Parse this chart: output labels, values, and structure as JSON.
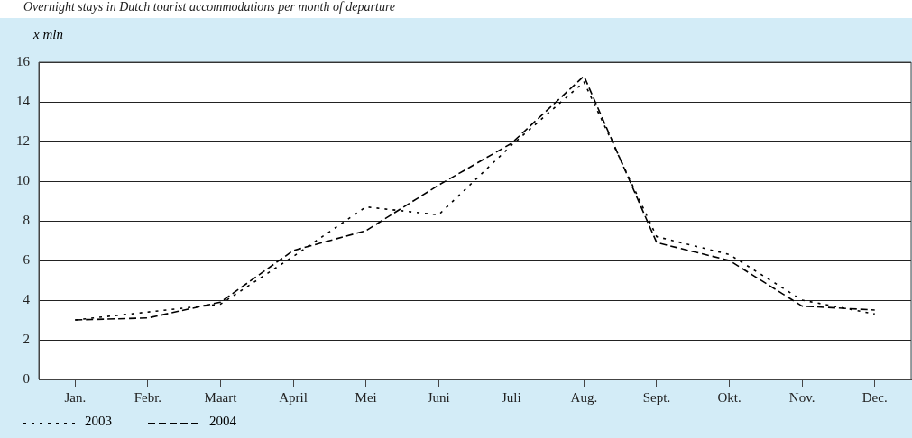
{
  "chart_data": {
    "type": "line",
    "title": "Overnight stays in Dutch tourist accommodations per month of departure",
    "ylabel": "x mln",
    "categories": [
      "Jan.",
      "Febr.",
      "Maart",
      "April",
      "Mei",
      "Juni",
      "Juli",
      "Aug.",
      "Sept.",
      "Okt.",
      "Nov.",
      "Dec."
    ],
    "series": [
      {
        "name": "2003",
        "color": "#000000",
        "line_style": "dotted",
        "values": [
          3.0,
          3.4,
          3.8,
          6.2,
          8.7,
          8.3,
          11.8,
          15.0,
          7.2,
          6.3,
          4.0,
          3.3
        ]
      },
      {
        "name": "2004",
        "color": "#000000",
        "line_style": "dashed",
        "values": [
          3.0,
          3.1,
          3.9,
          6.5,
          7.5,
          9.8,
          11.9,
          15.3,
          6.9,
          6.0,
          3.7,
          3.5
        ]
      }
    ],
    "ylim": [
      0,
      16
    ],
    "yticks": [
      0,
      2,
      4,
      6,
      8,
      10,
      12,
      14,
      16
    ],
    "grid": "y",
    "legend": "bottom left",
    "marker": "none"
  }
}
